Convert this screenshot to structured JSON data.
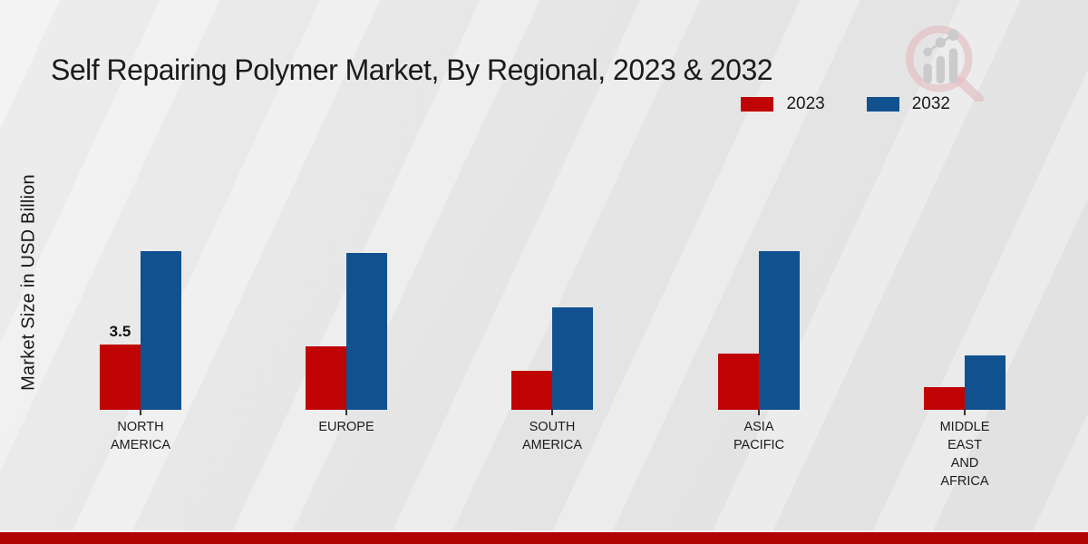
{
  "title": "Self Repairing Polymer Market, By Regional, 2023 & 2032",
  "ylabel": "Market Size in USD Billion",
  "legend": {
    "position": "top-right",
    "items": [
      {
        "label": "2023",
        "color": "#c00404"
      },
      {
        "label": "2032",
        "color": "#11518f"
      }
    ]
  },
  "colors": {
    "series_2023": "#c00404",
    "series_2032": "#11518f",
    "footer_stripe": "#b00303",
    "baseline": "#333333"
  },
  "watermark_icon": "magnifier-bar-chart-logo",
  "chart_data": {
    "type": "bar",
    "categories": [
      "NORTH AMERICA",
      "EUROPE",
      "SOUTH AMERICA",
      "ASIA PACIFIC",
      "MIDDLE EAST AND AFRICA"
    ],
    "series": [
      {
        "name": "2023",
        "color": "#c00404",
        "values": [
          3.5,
          3.4,
          2.1,
          3.0,
          1.2
        ]
      },
      {
        "name": "2032",
        "color": "#11518f",
        "values": [
          8.5,
          8.4,
          5.5,
          8.5,
          2.9
        ]
      }
    ],
    "title": "Self Repairing Polymer Market, By Regional, 2023 & 2032",
    "xlabel": "",
    "ylabel": "Market Size in USD Billion",
    "ylim": [
      0,
      10
    ],
    "grid": false,
    "axis_line": "dashed-baseline-only",
    "legend_position": "top-right",
    "data_labels": [
      {
        "category_index": 0,
        "series_index": 0,
        "text": "3.5"
      }
    ]
  }
}
